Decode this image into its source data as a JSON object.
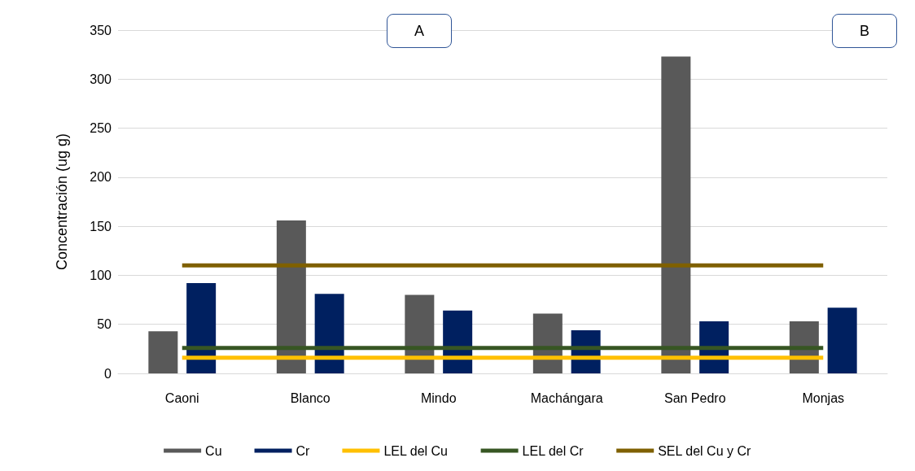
{
  "chart_data": {
    "type": "bar",
    "ylabel": "Concentración (ug g)",
    "categories": [
      "Caoni",
      "Blanco",
      "Mindo",
      "Machángara",
      "San Pedro",
      "Monjas"
    ],
    "series": [
      {
        "name": "Cu",
        "color": "#595959",
        "values": [
          43,
          156,
          80,
          61,
          323,
          53
        ]
      },
      {
        "name": "Cr",
        "color": "#002060",
        "values": [
          92,
          81,
          64,
          44,
          53,
          67
        ]
      },
      {
        "name": "LEL del Cu",
        "type": "line",
        "color": "#ffc000",
        "values": [
          16,
          16,
          16,
          16,
          16,
          16
        ]
      },
      {
        "name": "LEL del Cr",
        "type": "line",
        "color": "#375623",
        "values": [
          26,
          26,
          26,
          26,
          26,
          26
        ]
      },
      {
        "name": "SEL del Cu y Cr",
        "type": "line",
        "color": "#7f6000",
        "values": [
          110,
          110,
          110,
          110,
          110,
          110
        ]
      }
    ],
    "ylim": [
      0,
      350
    ],
    "yticks": [
      0,
      50,
      100,
      150,
      200,
      250,
      300,
      350
    ],
    "grid": "y",
    "legend": "bottom",
    "marker": "none",
    "line_style": "solid",
    "annotations": [
      "A",
      "B"
    ]
  }
}
